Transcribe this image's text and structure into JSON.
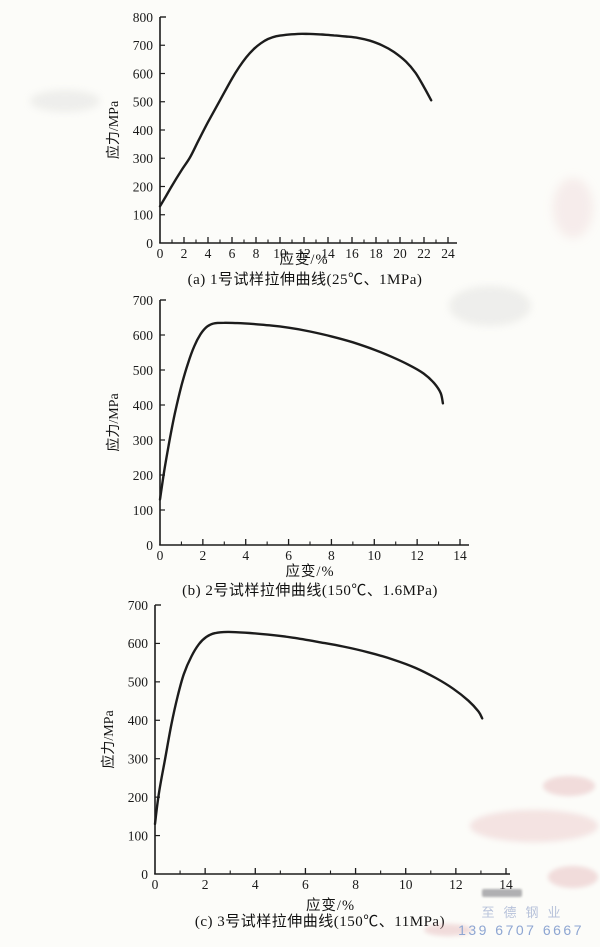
{
  "page": {
    "background": "#fcfcf9",
    "ink_color": "#1c1c1c",
    "watermark": {
      "line1": "至德钢业",
      "line2": "139 6707 6667",
      "color1": "#b7c2da",
      "color2": "#8ea6d2"
    }
  },
  "chart_data": [
    {
      "id": "a",
      "type": "line",
      "title": "(a) 1号试样拉伸曲线(25℃、1MPa)",
      "xlabel": "应变/%",
      "ylabel": "应力/MPa",
      "xlim": [
        0,
        24
      ],
      "ylim": [
        0,
        800
      ],
      "xticks": [
        0,
        2,
        4,
        6,
        8,
        10,
        12,
        14,
        16,
        18,
        20,
        22,
        24
      ],
      "yticks": [
        0,
        100,
        200,
        300,
        400,
        500,
        600,
        700,
        800
      ],
      "grid": false,
      "legend": false,
      "curve": [
        [
          0,
          130
        ],
        [
          0.5,
          166
        ],
        [
          1,
          203
        ],
        [
          1.8,
          258
        ],
        [
          2.5,
          303
        ],
        [
          3.2,
          362
        ],
        [
          4,
          428
        ],
        [
          5,
          505
        ],
        [
          6,
          582
        ],
        [
          6.6,
          623
        ],
        [
          7.2,
          658
        ],
        [
          7.8,
          686
        ],
        [
          8.4,
          707
        ],
        [
          9,
          722
        ],
        [
          9.7,
          732
        ],
        [
          10.5,
          737
        ],
        [
          11.5,
          740
        ],
        [
          12.5,
          740
        ],
        [
          13.5,
          738
        ],
        [
          14.5,
          735
        ],
        [
          15.5,
          731
        ],
        [
          16.5,
          726
        ],
        [
          17.5,
          716
        ],
        [
          18.5,
          700
        ],
        [
          19.5,
          676
        ],
        [
          20.5,
          642
        ],
        [
          21.3,
          602
        ],
        [
          22,
          552
        ],
        [
          22.6,
          505
        ]
      ]
    },
    {
      "id": "b",
      "type": "line",
      "title": "(b) 2号试样拉伸曲线(150℃、1.6MPa)",
      "xlabel": "应变/%",
      "ylabel": "应力/MPa",
      "xlim": [
        0,
        14
      ],
      "ylim": [
        0,
        700
      ],
      "xticks": [
        0,
        2,
        4,
        6,
        8,
        10,
        12,
        14
      ],
      "yticks": [
        0,
        100,
        200,
        300,
        400,
        500,
        600,
        700
      ],
      "grid": false,
      "legend": false,
      "curve": [
        [
          0,
          130
        ],
        [
          0.2,
          213
        ],
        [
          0.45,
          300
        ],
        [
          0.7,
          378
        ],
        [
          1,
          455
        ],
        [
          1.3,
          518
        ],
        [
          1.6,
          568
        ],
        [
          1.9,
          603
        ],
        [
          2.2,
          624
        ],
        [
          2.5,
          633
        ],
        [
          3,
          635
        ],
        [
          3.6,
          634
        ],
        [
          4.4,
          631
        ],
        [
          5.2,
          627
        ],
        [
          6,
          621
        ],
        [
          7,
          610
        ],
        [
          8,
          596
        ],
        [
          9,
          579
        ],
        [
          10,
          558
        ],
        [
          10.8,
          538
        ],
        [
          11.6,
          515
        ],
        [
          12.3,
          490
        ],
        [
          12.8,
          462
        ],
        [
          13.1,
          434
        ],
        [
          13.2,
          405
        ]
      ]
    },
    {
      "id": "c",
      "type": "line",
      "title": "(c) 3号试样拉伸曲线(150℃、11MPa)",
      "xlabel": "应变/%",
      "ylabel": "应力/MPa",
      "xlim": [
        0,
        14
      ],
      "ylim": [
        0,
        700
      ],
      "xticks": [
        0,
        2,
        4,
        6,
        8,
        10,
        12,
        14
      ],
      "yticks": [
        0,
        100,
        200,
        300,
        400,
        500,
        600,
        700
      ],
      "grid": false,
      "legend": false,
      "curve": [
        [
          0,
          130
        ],
        [
          0.15,
          208
        ],
        [
          0.4,
          298
        ],
        [
          0.65,
          388
        ],
        [
          0.9,
          462
        ],
        [
          1.15,
          520
        ],
        [
          1.45,
          566
        ],
        [
          1.75,
          598
        ],
        [
          2.05,
          617
        ],
        [
          2.4,
          627
        ],
        [
          2.9,
          630
        ],
        [
          3.6,
          628
        ],
        [
          4.5,
          623
        ],
        [
          5.5,
          615
        ],
        [
          6.5,
          604
        ],
        [
          7.5,
          592
        ],
        [
          8.5,
          577
        ],
        [
          9.5,
          558
        ],
        [
          10.4,
          536
        ],
        [
          11.2,
          510
        ],
        [
          11.9,
          482
        ],
        [
          12.5,
          451
        ],
        [
          12.9,
          423
        ],
        [
          13.05,
          405
        ]
      ]
    }
  ]
}
